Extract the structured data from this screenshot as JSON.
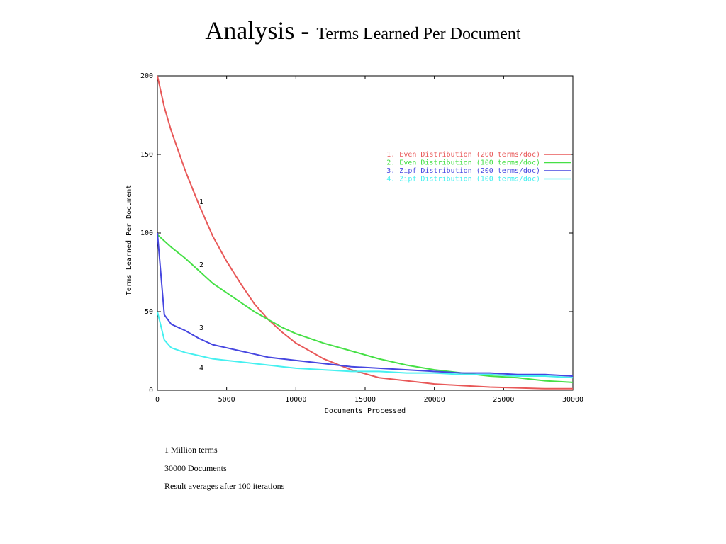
{
  "title_main": "Analysis -",
  "title_sub": "Terms Learned Per Document",
  "chart_data": {
    "type": "line",
    "x_label": "Documents Processed",
    "y_label": "Terms Learned Per Document",
    "x": [
      0,
      500,
      1000,
      2000,
      3000,
      4000,
      5000,
      6000,
      7000,
      8000,
      9000,
      10000,
      12000,
      14000,
      16000,
      18000,
      20000,
      22000,
      24000,
      26000,
      28000,
      30000
    ],
    "series": [
      {
        "name": "1. Even Distribution (200 terms/doc)",
        "color": "#e85858",
        "values": [
          200,
          180,
          165,
          140,
          118,
          98,
          82,
          68,
          55,
          45,
          37,
          30,
          20,
          13,
          8,
          6,
          4,
          3,
          2,
          1.5,
          1,
          1
        ]
      },
      {
        "name": "2. Even Distribution (100 terms/doc)",
        "color": "#46e046",
        "values": [
          99,
          95,
          91,
          84,
          76,
          68,
          62,
          56,
          50,
          45,
          40,
          36,
          30,
          25,
          20,
          16,
          13,
          11,
          9,
          8,
          6,
          5
        ]
      },
      {
        "name": "3. Zipf Distribution (200 terms/doc)",
        "color": "#4646e0",
        "values": [
          100,
          48,
          42,
          38,
          33,
          29,
          27,
          25,
          23,
          21,
          20,
          19,
          17,
          15,
          14,
          13,
          12,
          11,
          11,
          10,
          10,
          9
        ]
      },
      {
        "name": "4. Zipf Distribution (100 terms/doc)",
        "color": "#46f0f0",
        "values": [
          50,
          32,
          27,
          24,
          22,
          20,
          19,
          18,
          17,
          16,
          15,
          14,
          13,
          12,
          12,
          11,
          11,
          10,
          10,
          9,
          9,
          8
        ]
      }
    ],
    "annotations": [
      "1",
      "2",
      "3",
      "4"
    ],
    "xlim": [
      0,
      30000
    ],
    "ylim": [
      0,
      200
    ],
    "xticks": [
      0,
      5000,
      10000,
      15000,
      20000,
      25000,
      30000
    ],
    "yticks": [
      0,
      50,
      100,
      150,
      200
    ],
    "legend": "upper right"
  },
  "notes": [
    "1 Million terms",
    "30000 Documents",
    "Result averages after 100 iterations"
  ]
}
